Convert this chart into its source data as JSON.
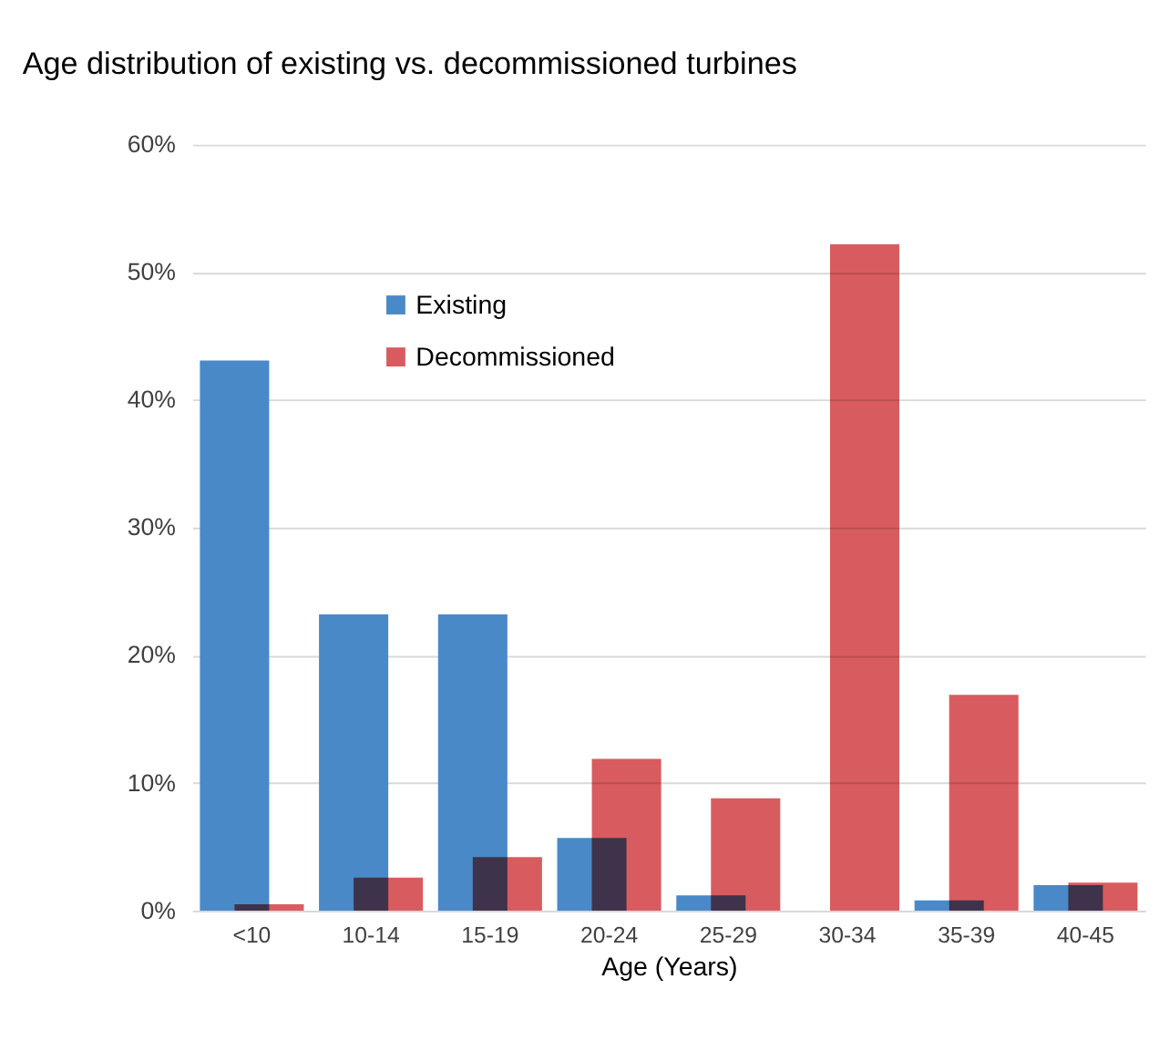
{
  "chart_data": {
    "type": "bar",
    "title": "Age distribution of existing vs. decommissioned turbines",
    "xlabel": "Age (Years)",
    "categories": [
      "<10",
      "10-14",
      "15-19",
      "20-24",
      "25-29",
      "30-34",
      "35-39",
      "40-45"
    ],
    "series": [
      {
        "name": "Existing",
        "color": "#4a89c8",
        "values": [
          43.1,
          23.2,
          23.2,
          5.7,
          1.2,
          0,
          0.8,
          2.0
        ]
      },
      {
        "name": "Decommissioned",
        "color": "#d85c5f",
        "values": [
          0.5,
          2.6,
          4.2,
          11.9,
          8.8,
          52.2,
          16.9,
          2.2
        ]
      }
    ],
    "ylim": [
      0,
      60
    ],
    "yticks": [
      {
        "value": 0,
        "label": "0%"
      },
      {
        "value": 10,
        "label": "10%"
      },
      {
        "value": 20,
        "label": "20%"
      },
      {
        "value": 30,
        "label": "30%"
      },
      {
        "value": 40,
        "label": "40%"
      },
      {
        "value": 50,
        "label": "50%"
      },
      {
        "value": 60,
        "label": "60%"
      }
    ],
    "grid": "y",
    "legend": "top left"
  }
}
